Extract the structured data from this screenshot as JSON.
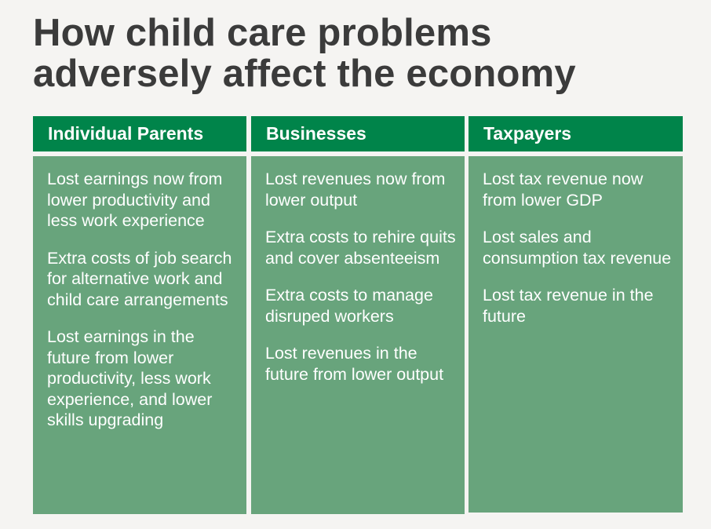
{
  "title": {
    "line1": "How child care problems",
    "line2": "adversely affect the economy"
  },
  "colors": {
    "header_green": "#00844a",
    "body_green": "#68a47c",
    "title_text": "#3b3b3b",
    "background": "#f5f4f2"
  },
  "columns": [
    {
      "header": "Individual Parents",
      "items": [
        "Lost earnings now from lower productivity and less work experience",
        "Extra costs of job search for alternative work and child care arrangements",
        "Lost earnings in the future from lower productivity, less work experience, and lower skills upgrading"
      ]
    },
    {
      "header": "Businesses",
      "items": [
        "Lost revenues now from lower output",
        "Extra costs to rehire quits and cover absenteeism",
        "Extra costs to manage disruped workers",
        "Lost revenues in the future from lower output"
      ]
    },
    {
      "header": "Taxpayers",
      "items": [
        "Lost tax revenue now from lower GDP",
        "Lost sales and consumption tax revenue",
        "Lost tax revenue in the future"
      ]
    }
  ]
}
